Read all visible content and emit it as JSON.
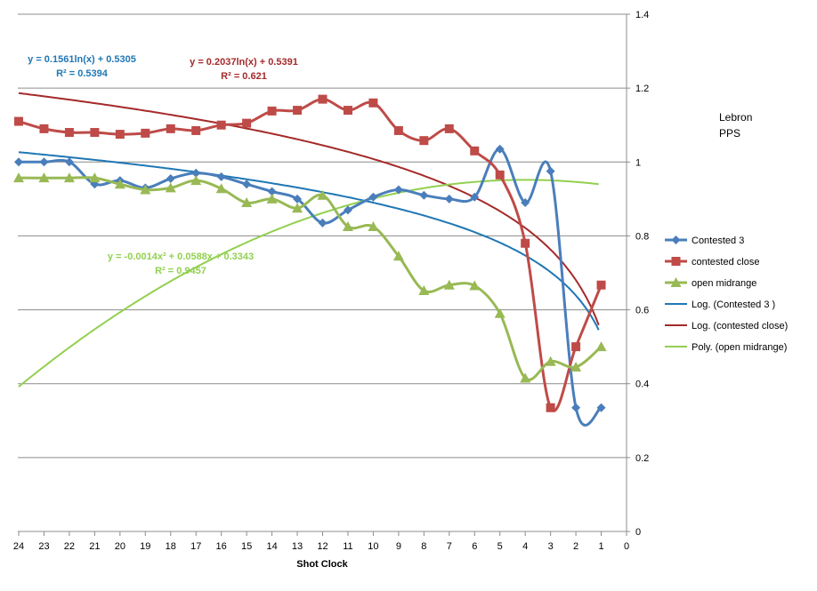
{
  "chart_data": {
    "type": "line",
    "title": "",
    "xlabel": "Shot Clock",
    "ylabel": "",
    "x_reversed": true,
    "xlim": [
      0,
      24
    ],
    "ylim": [
      0,
      1.4
    ],
    "x_ticks": [
      "24",
      "23",
      "22",
      "21",
      "20",
      "19",
      "18",
      "17",
      "16",
      "15",
      "14",
      "13",
      "12",
      "11",
      "10",
      "9",
      "8",
      "7",
      "6",
      "5",
      "4",
      "3",
      "2",
      "1",
      "0"
    ],
    "y_ticks": [
      "1.4",
      "1.2",
      "1",
      "0.8",
      "0.6",
      "0.4",
      "0.2",
      "0"
    ],
    "gridlines": true,
    "legend_position": "right",
    "x": [
      24,
      23,
      22,
      21,
      20,
      19,
      18,
      17,
      16,
      15,
      14,
      13,
      12,
      11,
      10,
      9,
      8,
      7,
      6,
      5,
      4,
      3,
      2,
      1
    ],
    "series": [
      {
        "name": "Contested 3",
        "color": "#4a7ebb",
        "marker": "diamond",
        "values": [
          1.0,
          1.0,
          1.0,
          0.94,
          0.95,
          0.93,
          0.955,
          0.97,
          0.96,
          0.94,
          0.92,
          0.9,
          0.835,
          0.87,
          0.905,
          0.925,
          0.91,
          0.9,
          0.905,
          1.035,
          0.89,
          0.975,
          0.335,
          0.335
        ]
      },
      {
        "name": "contested close",
        "color": "#be4b48",
        "marker": "square",
        "values": [
          1.11,
          1.09,
          1.08,
          1.08,
          1.075,
          1.078,
          1.09,
          1.085,
          1.1,
          1.105,
          1.138,
          1.14,
          1.17,
          1.14,
          1.16,
          1.085,
          1.058,
          1.09,
          1.03,
          0.965,
          0.78,
          0.335,
          0.5,
          0.667
        ]
      },
      {
        "name": "open midrange",
        "color": "#98b954",
        "marker": "triangle",
        "values": [
          0.957,
          0.957,
          0.957,
          0.957,
          0.94,
          0.925,
          0.93,
          0.95,
          0.928,
          0.89,
          0.9,
          0.875,
          0.91,
          0.825,
          0.825,
          0.745,
          0.652,
          0.667,
          0.665,
          0.59,
          0.415,
          0.46,
          0.445,
          0.5
        ]
      }
    ],
    "trendlines": [
      {
        "name": "Log. (Contested 3 )",
        "color": "#1f77b4",
        "type": "log",
        "a": 0.1561,
        "b": 0.5305,
        "equation": "y = 0.1561ln(x) + 0.5305",
        "r2": "R² = 0.5394"
      },
      {
        "name": "Log. (contested close)",
        "color": "#a52a2a",
        "type": "log",
        "a": 0.2037,
        "b": 0.5391,
        "equation": "y = 0.2037ln(x) + 0.5391",
        "r2": "R² = 0.621"
      },
      {
        "name": "Poly. (open midrange)",
        "color": "#92d050",
        "type": "poly2",
        "a": -0.0014,
        "b": 0.0588,
        "c": 0.3343,
        "equation": "y = -0.0014x² + 0.0588x + 0.3343",
        "r2": "R² = 0.9457"
      }
    ],
    "annotations": [
      "Lebron",
      "PPS"
    ]
  }
}
